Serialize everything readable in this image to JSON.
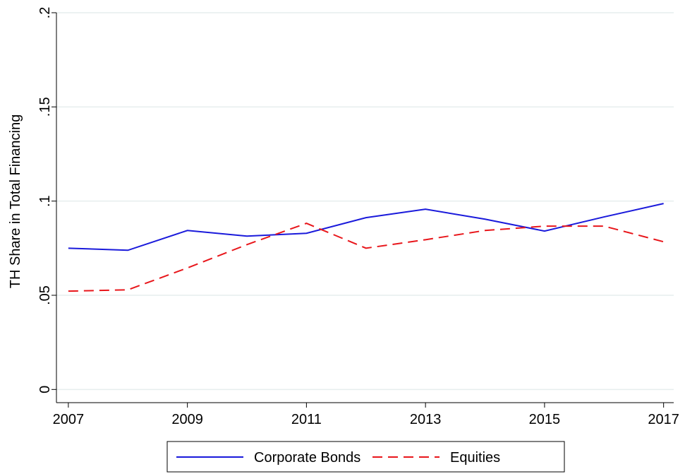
{
  "chart_data": {
    "type": "line",
    "y_label": "TH Share in Total Financing",
    "x": [
      2007,
      2008,
      2009,
      2010,
      2011,
      2012,
      2013,
      2014,
      2015,
      2016,
      2017
    ],
    "series": [
      {
        "name": "Corporate Bonds",
        "color": "#1a1adb",
        "dash": false,
        "values": [
          0.075,
          0.0739,
          0.0844,
          0.0814,
          0.0829,
          0.0912,
          0.0957,
          0.0904,
          0.0841,
          0.0916,
          0.0987
        ]
      },
      {
        "name": "Equities",
        "color": "#e8161b",
        "dash": true,
        "values": [
          0.0522,
          0.0529,
          0.0645,
          0.0769,
          0.0882,
          0.075,
          0.0795,
          0.0844,
          0.0867,
          0.0867,
          0.0784
        ]
      }
    ],
    "xlim": [
      2006.8,
      2017.17
    ],
    "xticks": [
      2007,
      2009,
      2011,
      2013,
      2015,
      2017
    ],
    "ylim": [
      -0.007,
      0.2
    ],
    "yticks": [
      0,
      {
        "value": 0.05,
        "label": ".05"
      },
      {
        "value": 0.1,
        "label": ".1"
      },
      {
        "value": 0.15,
        "label": ".15"
      },
      {
        "value": 0.2,
        "label": ".2"
      }
    ],
    "grid": true,
    "legend": "bottom"
  }
}
